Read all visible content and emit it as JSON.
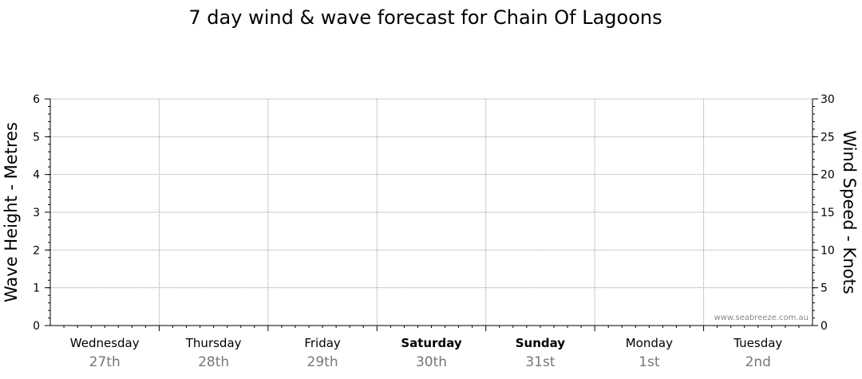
{
  "chart_data": {
    "type": "line",
    "title": "7 day wind & wave forecast for Chain Of Lagoons",
    "y_left_label": "Wave Height - Metres",
    "y_right_label": "Wind Speed - Knots",
    "y_left_range": [
      0,
      6
    ],
    "y_left_ticks": [
      "0",
      "1",
      "2",
      "3",
      "4",
      "5",
      "6"
    ],
    "y_right_range": [
      0,
      30
    ],
    "y_right_ticks": [
      "0",
      "5",
      "10",
      "15",
      "20",
      "25",
      "30"
    ],
    "grid": true,
    "days": [
      {
        "day": "Wednesday",
        "date": "27th",
        "weekend": false
      },
      {
        "day": "Thursday",
        "date": "28th",
        "weekend": false
      },
      {
        "day": "Friday",
        "date": "29th",
        "weekend": false
      },
      {
        "day": "Saturday",
        "date": "30th",
        "weekend": true
      },
      {
        "day": "Sunday",
        "date": "31st",
        "weekend": true
      },
      {
        "day": "Monday",
        "date": "1st",
        "weekend": false
      },
      {
        "day": "Tuesday",
        "date": "2nd",
        "weekend": false
      }
    ],
    "series": [],
    "watermark": "www.seabreeze.com.au"
  },
  "colors": {
    "grid": "#999999",
    "axis": "#000000",
    "date_text": "#777777",
    "watermark": "#888888"
  }
}
